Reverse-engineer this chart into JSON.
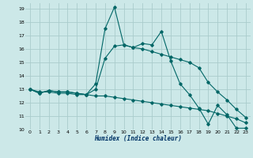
{
  "xlabel": "Humidex (Indice chaleur)",
  "bg_color": "#cce8e8",
  "grid_color": "#aacccc",
  "line_color": "#006666",
  "xlim": [
    -0.5,
    23.5
  ],
  "ylim": [
    10,
    19.4
  ],
  "xticks": [
    0,
    1,
    2,
    3,
    4,
    5,
    6,
    7,
    8,
    9,
    10,
    11,
    12,
    13,
    14,
    15,
    16,
    17,
    18,
    19,
    20,
    21,
    22,
    23
  ],
  "yticks": [
    10,
    11,
    12,
    13,
    14,
    15,
    16,
    17,
    18,
    19
  ],
  "line1_x": [
    0,
    1,
    2,
    3,
    4,
    5,
    6,
    7,
    8,
    9,
    10,
    11,
    12,
    13,
    14,
    15,
    16,
    17,
    18,
    19,
    20,
    21,
    22,
    23
  ],
  "line1_y": [
    13,
    12.7,
    12.9,
    12.8,
    12.8,
    12.7,
    12.6,
    13.4,
    17.5,
    19.1,
    16.3,
    16.1,
    16.4,
    16.3,
    17.3,
    15.1,
    13.4,
    12.6,
    11.6,
    10.4,
    11.8,
    11.1,
    10.1,
    10.1
  ],
  "line2_x": [
    0,
    1,
    2,
    3,
    4,
    5,
    6,
    7,
    8,
    9,
    10,
    11,
    12,
    13,
    14,
    15,
    16,
    17,
    18,
    19,
    20,
    21,
    22,
    23
  ],
  "line2_y": [
    13,
    12.7,
    12.9,
    12.8,
    12.8,
    12.7,
    12.6,
    13.0,
    15.3,
    16.2,
    16.3,
    16.1,
    16.0,
    15.8,
    15.6,
    15.4,
    15.2,
    15.0,
    14.6,
    13.5,
    12.8,
    12.2,
    11.5,
    10.9
  ],
  "line3_x": [
    0,
    1,
    2,
    3,
    4,
    5,
    6,
    7,
    8,
    9,
    10,
    11,
    12,
    13,
    14,
    15,
    16,
    17,
    18,
    19,
    20,
    21,
    22,
    23
  ],
  "line3_y": [
    13,
    12.8,
    12.8,
    12.7,
    12.7,
    12.6,
    12.6,
    12.5,
    12.5,
    12.4,
    12.3,
    12.2,
    12.1,
    12.0,
    11.9,
    11.8,
    11.7,
    11.6,
    11.5,
    11.4,
    11.2,
    11.0,
    10.8,
    10.5
  ]
}
